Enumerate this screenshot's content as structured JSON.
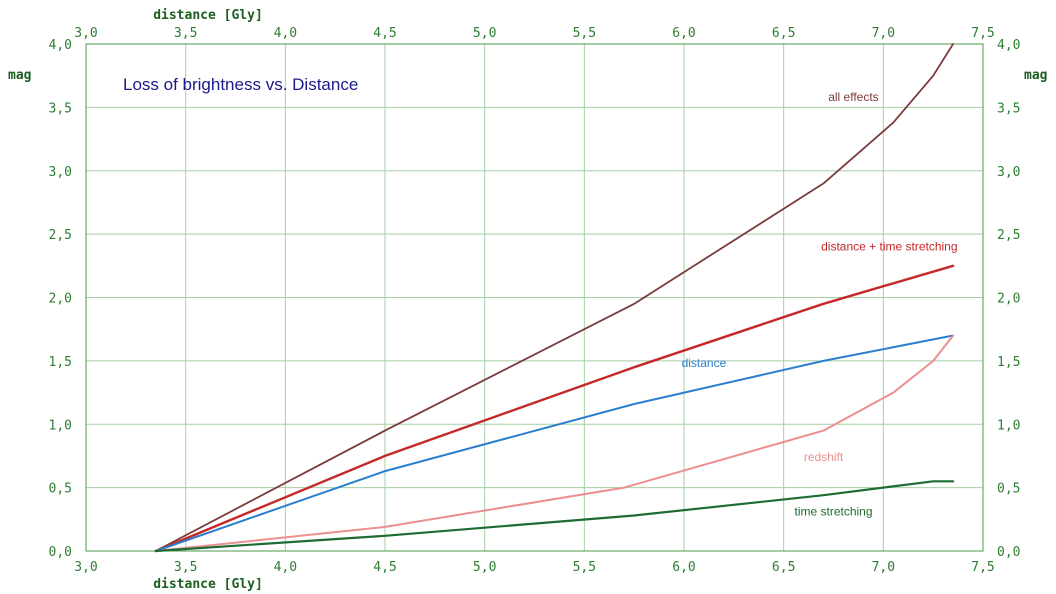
{
  "chart_data": {
    "type": "line",
    "title": "Loss of brightness vs. Distance",
    "xlabel_top": "distance [Gly]",
    "xlabel_bottom": "distance [Gly]",
    "ylabel_left": "mag",
    "ylabel_right": "mag",
    "xlim": [
      3.0,
      7.5
    ],
    "ylim": [
      0.0,
      4.0
    ],
    "x_ticks": [
      "3,0",
      "3,5",
      "4,0",
      "4,5",
      "5,0",
      "5,5",
      "6,0",
      "6,5",
      "7,0",
      "7,5"
    ],
    "x_tick_values": [
      3.0,
      3.5,
      4.0,
      4.5,
      5.0,
      5.5,
      6.0,
      6.5,
      7.0,
      7.5
    ],
    "y_ticks": [
      "0,0",
      "0,5",
      "1,0",
      "1,5",
      "2,0",
      "2,5",
      "3,0",
      "3,5",
      "4,0"
    ],
    "y_tick_values": [
      0.0,
      0.5,
      1.0,
      1.5,
      2.0,
      2.5,
      3.0,
      3.5,
      4.0
    ],
    "grid": true,
    "colors": {
      "grid": "#a5cfa5",
      "frame": "#4c9a4c",
      "ticks": "#2e7d32"
    },
    "series": [
      {
        "name": "all effects",
        "color": "#7b3b3b",
        "width": 1.8,
        "x": [
          3.35,
          4.5,
          5.75,
          6.7,
          7.05,
          7.25,
          7.35
        ],
        "y": [
          0.0,
          0.95,
          1.95,
          2.9,
          3.38,
          3.75,
          4.0
        ]
      },
      {
        "name": "distance + time stretching",
        "color": "#c62828",
        "width": 2.4,
        "x": [
          3.35,
          4.5,
          5.75,
          6.7,
          7.35
        ],
        "y": [
          0.0,
          0.75,
          1.45,
          1.95,
          2.25
        ]
      },
      {
        "name": "distance",
        "color": "#2a7fcf",
        "width": 2.0,
        "x": [
          3.35,
          4.5,
          5.75,
          6.7,
          7.35
        ],
        "y": [
          0.0,
          0.63,
          1.16,
          1.5,
          1.7
        ]
      },
      {
        "name": "redshift",
        "color": "#eb8f8f",
        "width": 2.0,
        "x": [
          3.35,
          4.5,
          5.7,
          6.7,
          7.05,
          7.25,
          7.35
        ],
        "y": [
          0.0,
          0.19,
          0.5,
          0.95,
          1.25,
          1.5,
          1.7
        ]
      },
      {
        "name": "time stretching",
        "color": "#1e6b34",
        "width": 2.2,
        "x": [
          3.35,
          4.5,
          5.75,
          6.7,
          7.25,
          7.35
        ],
        "y": [
          0.0,
          0.12,
          0.28,
          0.44,
          0.55,
          0.55
        ]
      }
    ],
    "annotations": [
      {
        "text": "all effects",
        "x": 6.85,
        "y": 3.55,
        "color": "#7b3b3b"
      },
      {
        "text": "distance + time stretching",
        "x": 7.03,
        "y": 2.37,
        "color": "#c62828"
      },
      {
        "text": "distance",
        "x": 6.1,
        "y": 1.45,
        "color": "#2a7fcf"
      },
      {
        "text": "redshift",
        "x": 6.7,
        "y": 0.71,
        "color": "#eb8f8f"
      },
      {
        "text": "time stretching",
        "x": 6.75,
        "y": 0.28,
        "color": "#1e6b34"
      }
    ]
  }
}
